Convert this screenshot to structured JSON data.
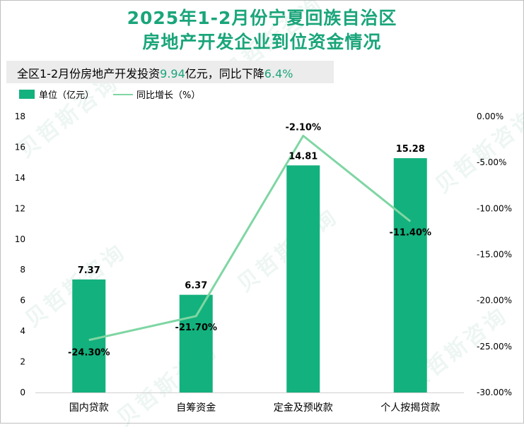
{
  "title_line1": "2025年1-2月份宁夏回族自治区",
  "title_line2": "房地产开发企业到位资金情况",
  "subtitle": {
    "prefix": "全区1-2月份房地产开发投资",
    "value": "9.94",
    "mid": "亿元，同比下降",
    "pct": "6.4%"
  },
  "legend": {
    "bar_label": "单位（亿元）",
    "line_label": "同比增长（%）"
  },
  "watermark": "贝哲斯咨询",
  "colors": {
    "bar": "#13b17d",
    "line": "#7fd6a3",
    "title": "#1aa57a"
  },
  "chart_data": {
    "type": "bar",
    "categories": [
      "国内贷款",
      "自筹资金",
      "定金及预收款",
      "个人按揭贷款"
    ],
    "series": [
      {
        "name": "单位（亿元）",
        "kind": "bar",
        "axis": "left",
        "values": [
          7.37,
          6.37,
          14.81,
          15.28
        ],
        "labels": [
          "7.37",
          "6.37",
          "14.81",
          "15.28"
        ]
      },
      {
        "name": "同比增长（%）",
        "kind": "line",
        "axis": "right",
        "values": [
          -24.3,
          -21.7,
          -2.1,
          -11.4
        ],
        "labels": [
          "-24.30%",
          "-21.70%",
          "-2.10%",
          "-11.40%"
        ]
      }
    ],
    "left_axis": {
      "range": [
        0,
        18
      ],
      "ticks": [
        "0",
        "2",
        "4",
        "6",
        "8",
        "10",
        "12",
        "14",
        "16",
        "18"
      ]
    },
    "right_axis": {
      "range": [
        -30,
        0
      ],
      "ticks": [
        "0.00%",
        "-5.00%",
        "-10.00%",
        "-15.00%",
        "-20.00%",
        "-25.00%",
        "-30.00%"
      ]
    },
    "grid": false,
    "legend_position": "top-left"
  }
}
